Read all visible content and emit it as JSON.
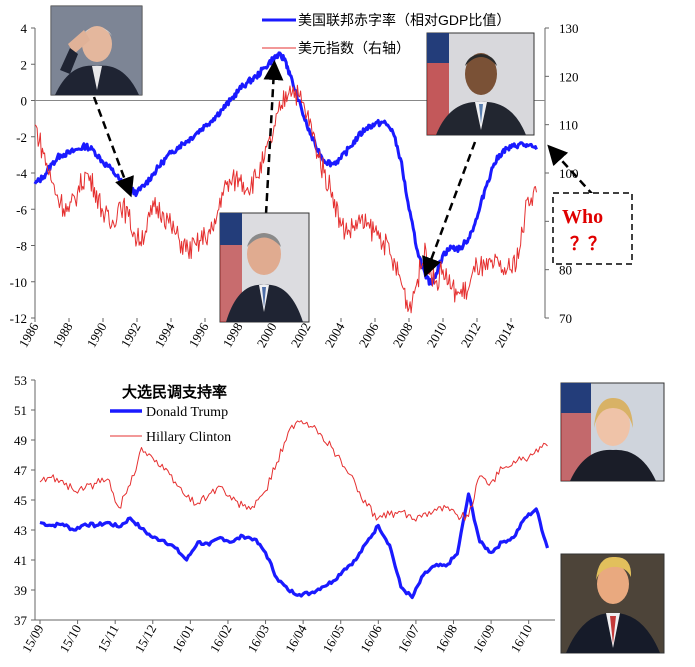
{
  "chart_data": [
    {
      "type": "line",
      "title": "",
      "xlabel": "",
      "ylabel_left": "",
      "ylabel_right": "",
      "x_ticks": [
        "1986",
        "1988",
        "1990",
        "1992",
        "1994",
        "1996",
        "1998",
        "2000",
        "2002",
        "2004",
        "2006",
        "2008",
        "2010",
        "2012",
        "2014"
      ],
      "y_left_ticks": [
        "4",
        "2",
        "0",
        "-2",
        "-4",
        "-6",
        "-8",
        "-10",
        "-12"
      ],
      "y_right_ticks": [
        "130",
        "120",
        "110",
        "100",
        "90",
        "80",
        "70"
      ],
      "ylim_left": [
        -12,
        4
      ],
      "ylim_right": [
        70,
        130
      ],
      "xlim": [
        1986,
        2016
      ],
      "legend_position": "top-center",
      "series": [
        {
          "name": "美国联邦赤字率（相对GDP比值）",
          "axis": "left",
          "color": "#1a1aff",
          "x": [
            1986,
            1986.5,
            1987,
            1987.5,
            1988,
            1988.5,
            1989,
            1989.5,
            1990,
            1990.5,
            1991,
            1991.5,
            1992,
            1992.5,
            1993,
            1993.5,
            1994,
            1994.5,
            1995,
            1995.5,
            1996,
            1996.5,
            1997,
            1997.5,
            1998,
            1998.5,
            1999,
            1999.5,
            2000,
            2000.3,
            2000.7,
            2001,
            2001.5,
            2002,
            2002.5,
            2003,
            2003.5,
            2004,
            2004.5,
            2005,
            2005.5,
            2006,
            2006.5,
            2007,
            2007.5,
            2008,
            2008.5,
            2009,
            2009.3,
            2009.7,
            2010,
            2010.5,
            2011,
            2011.5,
            2012,
            2012.5,
            2013,
            2013.5,
            2014,
            2014.5,
            2015,
            2015.5
          ],
          "values": [
            -4.6,
            -4.2,
            -3.5,
            -3.0,
            -2.9,
            -2.7,
            -2.5,
            -2.8,
            -3.4,
            -3.8,
            -4.4,
            -4.9,
            -5.1,
            -4.6,
            -4.0,
            -3.4,
            -2.9,
            -2.5,
            -2.2,
            -1.8,
            -1.4,
            -1.0,
            -0.5,
            0.0,
            0.6,
            1.0,
            1.3,
            1.8,
            2.3,
            2.5,
            2.3,
            1.4,
            0.0,
            -1.4,
            -2.5,
            -3.3,
            -3.5,
            -3.2,
            -2.6,
            -2.0,
            -1.5,
            -1.3,
            -1.2,
            -1.6,
            -3.2,
            -6.0,
            -8.3,
            -9.8,
            -10.1,
            -9.3,
            -8.5,
            -8.1,
            -8.2,
            -7.6,
            -6.5,
            -4.8,
            -3.5,
            -2.8,
            -2.6,
            -2.4,
            -2.5,
            -2.7
          ]
        },
        {
          "name": "美元指数（右轴）",
          "axis": "right",
          "color": "#e53030",
          "x": [
            1986,
            1986.5,
            1987,
            1987.5,
            1988,
            1988.5,
            1989,
            1989.5,
            1990,
            1990.5,
            1991,
            1991.5,
            1992,
            1992.5,
            1993,
            1993.5,
            1994,
            1994.5,
            1995,
            1995.5,
            1996,
            1996.5,
            1997,
            1997.5,
            1998,
            1998.5,
            1999,
            1999.5,
            2000,
            2000.5,
            2001,
            2001.5,
            2002,
            2002.5,
            2003,
            2003.5,
            2004,
            2004.5,
            2005,
            2005.5,
            2006,
            2006.5,
            2007,
            2007.5,
            2008,
            2008.5,
            2009,
            2009.5,
            2010,
            2010.5,
            2011,
            2011.5,
            2012,
            2012.5,
            2013,
            2013.5,
            2014,
            2014.5,
            2015,
            2015.5
          ],
          "values": [
            110,
            104,
            98,
            94,
            92,
            96,
            100,
            97,
            92,
            89,
            94,
            91,
            86,
            88,
            93,
            92,
            89,
            86,
            84,
            85,
            87,
            88,
            96,
            98,
            99,
            97,
            99,
            103,
            108,
            114,
            118,
            116,
            112,
            106,
            100,
            96,
            89,
            88,
            90,
            89,
            88,
            86,
            82,
            78,
            72,
            78,
            84,
            77,
            80,
            76,
            75,
            76,
            81,
            80,
            81,
            80,
            80,
            84,
            95,
            96
          ]
        }
      ],
      "annotations": [
        "Who",
        "？？"
      ]
    },
    {
      "type": "line",
      "title": "大选民调支持率",
      "xlabel": "",
      "ylabel": "",
      "x_ticks": [
        "15/09",
        "15/10",
        "15/11",
        "15/12",
        "16/01",
        "16/02",
        "16/03",
        "16/04",
        "16/05",
        "16/06",
        "16/07",
        "16/08",
        "16/09",
        "16/10"
      ],
      "y_ticks": [
        "53",
        "51",
        "49",
        "47",
        "45",
        "43",
        "41",
        "39",
        "37"
      ],
      "ylim": [
        37,
        53
      ],
      "legend_position": "top-left",
      "series": [
        {
          "name": "Donald Trump",
          "color": "#1a1aff",
          "x": [
            0,
            0.3,
            0.6,
            0.9,
            1.2,
            1.5,
            1.8,
            2.1,
            2.4,
            2.7,
            3.0,
            3.3,
            3.6,
            3.9,
            4.2,
            4.5,
            4.8,
            5.1,
            5.4,
            5.7,
            6.0,
            6.3,
            6.6,
            6.9,
            7.2,
            7.5,
            7.8,
            8.1,
            8.4,
            8.7,
            9.0,
            9.3,
            9.6,
            9.9,
            10.2,
            10.5,
            10.8,
            11.1,
            11.4,
            11.7,
            12.0,
            12.3,
            12.6,
            12.9,
            13.2,
            13.5
          ],
          "values": [
            43.5,
            43.3,
            43.4,
            43.0,
            43.4,
            43.3,
            43.5,
            43.2,
            43.8,
            43.1,
            42.5,
            42.3,
            41.8,
            41.0,
            42.2,
            42.0,
            42.5,
            42.2,
            42.6,
            42.4,
            41.5,
            39.8,
            39.0,
            38.7,
            38.8,
            39.2,
            39.6,
            40.4,
            41.0,
            42.2,
            43.3,
            42.0,
            39.2,
            38.5,
            40.0,
            40.6,
            40.6,
            41.4,
            45.4,
            42.2,
            41.5,
            42.2,
            42.5,
            43.8,
            44.4,
            41.8
          ]
        },
        {
          "name": "Hillary Clinton",
          "color": "#e53030",
          "x": [
            0,
            0.3,
            0.6,
            0.9,
            1.2,
            1.5,
            1.8,
            2.1,
            2.4,
            2.7,
            3.0,
            3.3,
            3.6,
            3.9,
            4.2,
            4.5,
            4.8,
            5.1,
            5.4,
            5.7,
            6.0,
            6.3,
            6.6,
            6.9,
            7.2,
            7.5,
            7.8,
            8.1,
            8.4,
            8.7,
            9.0,
            9.3,
            9.6,
            9.9,
            10.2,
            10.5,
            10.8,
            11.1,
            11.4,
            11.7,
            12.0,
            12.3,
            12.6,
            12.9,
            13.2,
            13.5
          ],
          "values": [
            46.2,
            46.5,
            46.3,
            45.6,
            45.8,
            46.1,
            46.4,
            44.5,
            46.0,
            48.5,
            47.8,
            47.0,
            46.2,
            45.2,
            44.8,
            45.4,
            45.9,
            45.0,
            44.6,
            44.5,
            45.6,
            47.5,
            49.5,
            50.2,
            49.9,
            49.3,
            48.4,
            47.2,
            46.0,
            44.6,
            43.8,
            44.0,
            44.2,
            43.7,
            44.1,
            44.4,
            44.5,
            44.0,
            43.9,
            46.6,
            46.2,
            47.1,
            47.6,
            47.7,
            48.4,
            48.6
          ]
        }
      ]
    }
  ]
}
